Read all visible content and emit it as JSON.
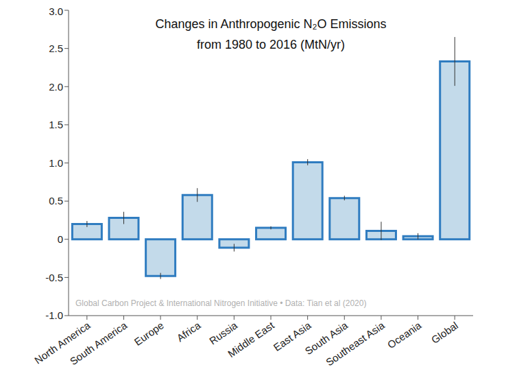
{
  "chart_data": {
    "type": "bar",
    "title": "Changes in Anthropogenic N₂O Emissions\nfrom 1980 to 2016 (MtN/yr)",
    "annotations": [
      "Global Carbon Project & International Nitrogen Initiative • Data: Tian et al (2020)"
    ],
    "categories": [
      "North America",
      "South America",
      "Europe",
      "Africa",
      "Russia",
      "Middle East",
      "East Asia",
      "South Asia",
      "Southeast Asia",
      "Oceania",
      "Global"
    ],
    "values": [
      0.2,
      0.28,
      -0.48,
      0.58,
      -0.11,
      0.15,
      1.01,
      0.54,
      0.11,
      0.04,
      2.33
    ],
    "error": [
      0.04,
      0.08,
      0.04,
      0.09,
      0.05,
      0.02,
      0.04,
      0.03,
      0.12,
      0.04,
      0.32
    ],
    "color": "#c3daea",
    "ylim": [
      -1,
      3
    ],
    "yticks": [
      {
        "value": -1,
        "label": "-1.0"
      },
      -0.5,
      0,
      0.5,
      {
        "value": 1,
        "label": "1.0"
      },
      1.5,
      {
        "value": 2,
        "label": "2.0"
      },
      2.5,
      {
        "value": 3,
        "label": "3.0"
      }
    ],
    "grid": false
  }
}
